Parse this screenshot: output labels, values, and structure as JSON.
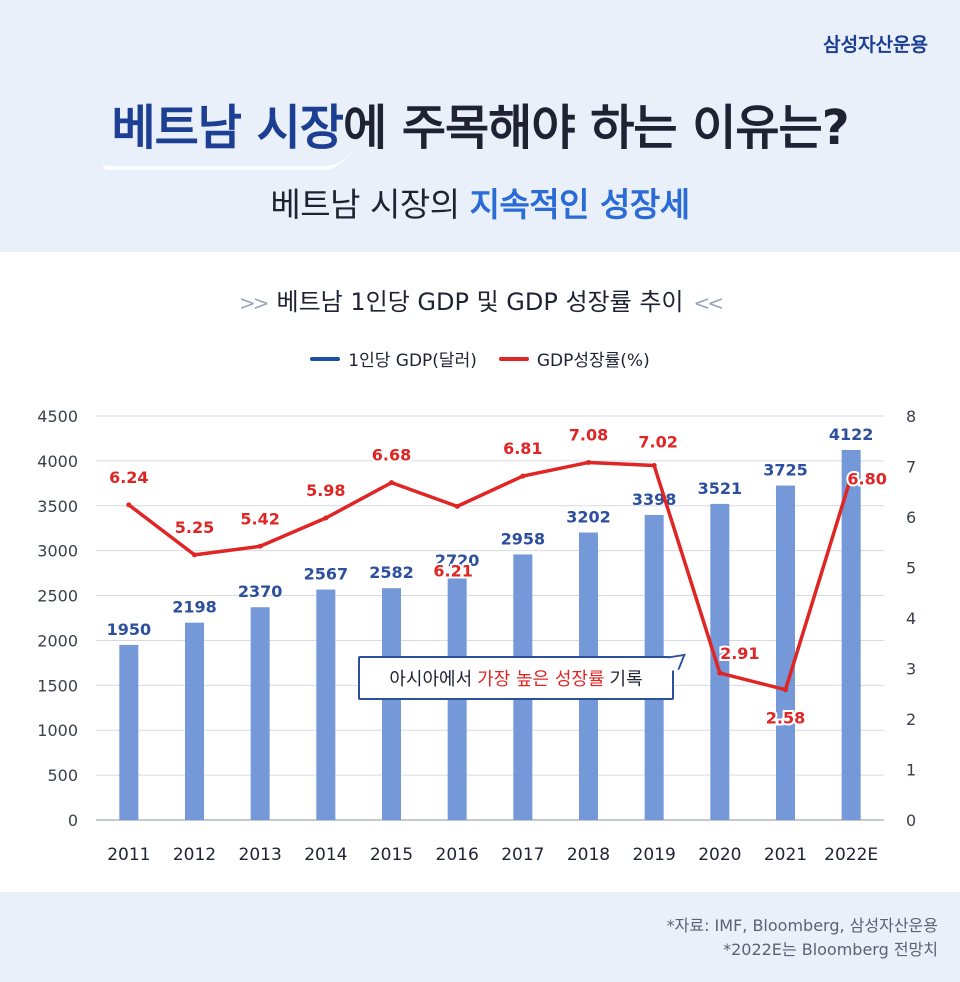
{
  "brand": "삼성자산운용",
  "headline": {
    "accent": "베트남 시장",
    "rest": "에 주목해야 하는 이유는?"
  },
  "subheadline": {
    "plain": "베트남 시장의 ",
    "accent": "지속적인 성장세"
  },
  "chart_title": "베트남 1인당 GDP 및 GDP 성장률 추이",
  "annotation": {
    "before": "아시아에서",
    "highlight": "가장 높은 성장률",
    "after": "기록"
  },
  "source": [
    "*자료: IMF, Bloomberg, 삼성자산운용",
    "*2022E는 Bloomberg 전망치"
  ],
  "colors": {
    "gdp": "#7498d8",
    "gdp_label": "#2c4f9e",
    "growth": "#e02525",
    "accent": "#1c3f94"
  },
  "chart_data": {
    "type": "bar+line",
    "categories": [
      "2011",
      "2012",
      "2013",
      "2014",
      "2015",
      "2016",
      "2017",
      "2018",
      "2019",
      "2020",
      "2021",
      "2022E"
    ],
    "series": [
      {
        "name": "1인당 GDP(달러)",
        "type": "bar",
        "axis": "left",
        "values": [
          1950,
          2198,
          2370,
          2567,
          2582,
          2720,
          2958,
          3202,
          3398,
          3521,
          3725,
          4122
        ]
      },
      {
        "name": "GDP성장률(%)",
        "type": "line",
        "axis": "right",
        "values": [
          6.24,
          5.25,
          5.42,
          5.98,
          6.68,
          6.21,
          6.81,
          7.08,
          7.02,
          2.91,
          2.58,
          6.8
        ]
      }
    ],
    "y_left": {
      "min": 0,
      "max": 4500,
      "ticks": [
        0,
        500,
        1000,
        1500,
        2000,
        2500,
        3000,
        3500,
        4000,
        4500
      ]
    },
    "y_right": {
      "min": 0,
      "max": 8,
      "ticks": [
        0,
        1,
        2,
        3,
        4,
        5,
        6,
        7,
        8
      ]
    },
    "grid": true,
    "legend": "top-center"
  }
}
